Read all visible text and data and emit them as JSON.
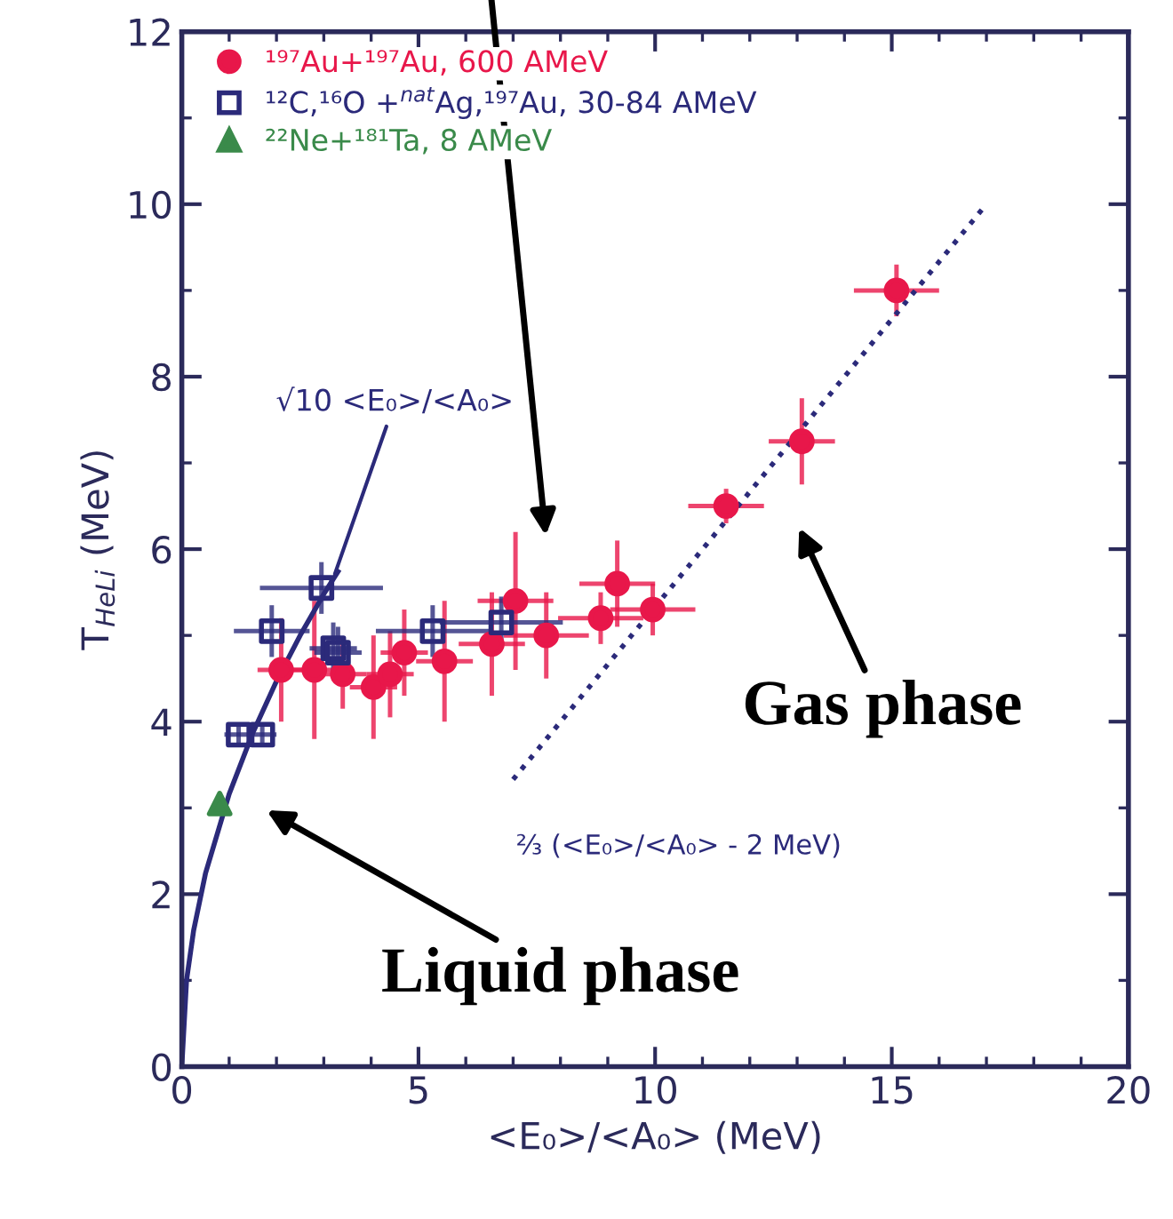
{
  "chart_data": {
    "type": "scatter",
    "xlabel": "<E₀>/<A₀> (MeV)",
    "ylabel": "T$_{HeLi}$ (MeV)",
    "xlim": [
      0,
      20
    ],
    "ylim": [
      0,
      12
    ],
    "xticks": [
      0,
      5,
      10,
      15,
      20
    ],
    "yticks": [
      0,
      2,
      4,
      6,
      8,
      10,
      12
    ],
    "grid": false,
    "legend": "top left",
    "series": [
      {
        "name": "¹⁹⁷Au+¹⁹⁷Au, 600 AMeV",
        "color": "#e8174a",
        "marker": "circle",
        "x": [
          2.1,
          2.8,
          3.4,
          4.05,
          4.4,
          4.7,
          5.55,
          6.55,
          7.05,
          7.7,
          8.85,
          9.2,
          9.95,
          11.5,
          13.1,
          15.1
        ],
        "values": [
          4.6,
          4.6,
          4.55,
          4.4,
          4.55,
          4.8,
          4.7,
          4.9,
          5.4,
          5.0,
          5.2,
          5.6,
          5.3,
          6.5,
          7.25,
          9.0
        ],
        "errors": [
          0.6,
          0.8,
          0.4,
          0.6,
          0.5,
          0.5,
          0.7,
          0.6,
          0.8,
          0.5,
          0.3,
          0.5,
          0.3,
          0.2,
          0.5,
          0.3
        ],
        "xerrors": [
          0.5,
          0.5,
          0.5,
          0.5,
          0.5,
          0.5,
          0.6,
          0.7,
          0.8,
          0.9,
          0.9,
          0.8,
          0.9,
          0.8,
          0.7,
          0.9
        ]
      },
      {
        "name": "¹²C,¹⁶O +$^{nat}$Ag,¹⁹⁷Au, 30-84 AMeV",
        "color": "#2b2a7a",
        "marker": "square",
        "x": [
          1.2,
          1.7,
          1.9,
          2.95,
          3.0,
          3.1,
          3.2,
          3.3,
          5.3,
          6.75
        ],
        "values": [
          3.85,
          3.85,
          5.05,
          5.55,
          null,
          null,
          4.85,
          4.8,
          5.05,
          5.15
        ],
        "errors": [
          0.1,
          0.1,
          0.3,
          0.3,
          null,
          null,
          0.3,
          0.3,
          0.3,
          0.3
        ],
        "xerrors": [
          0.3,
          0.3,
          0.8,
          1.3,
          null,
          null,
          0.5,
          0.5,
          1.2,
          1.3
        ]
      },
      {
        "name": "²²Ne+¹⁸¹Ta, 8 AMeV",
        "color": "#3a8a4a",
        "marker": "triangle",
        "x": [
          0.8
        ],
        "values": [
          3.05
        ]
      },
      {
        "type": "line",
        "color": "#2b2a7a",
        "line_style": "solid",
        "x": [
          0,
          0.1,
          0.25,
          0.5,
          1,
          1.5,
          2,
          2.5,
          3,
          3.3
        ],
        "values": [
          0,
          1.0,
          1.58,
          2.24,
          3.16,
          3.87,
          4.47,
          5.0,
          5.48,
          5.74
        ]
      },
      {
        "type": "line",
        "color": "#2b2a7a",
        "line_style": "dotted",
        "x": [
          7,
          17
        ],
        "values": [
          3.33,
          10
        ]
      }
    ],
    "annotations": [
      {
        "text": "√10 <E₀>/<A₀>",
        "x": 3.2,
        "y": 5.66
      },
      {
        "text": "⅔ (<E₀>/<A₀> - 2 MeV)",
        "x": 7,
        "y": 3.33
      },
      "Gas phase",
      "Liquid phase"
    ]
  }
}
